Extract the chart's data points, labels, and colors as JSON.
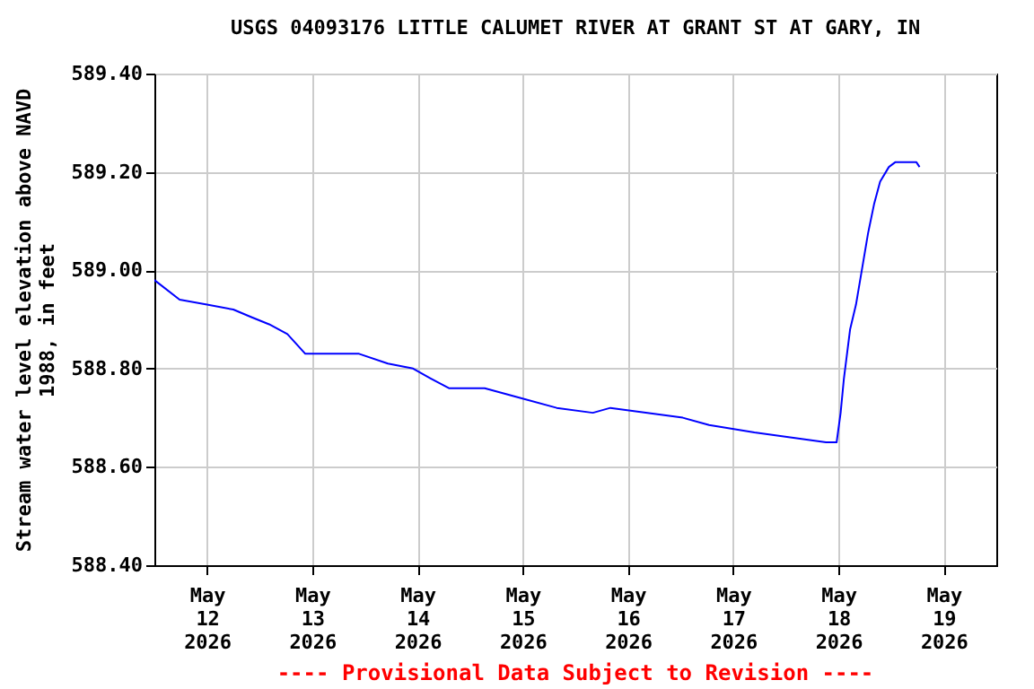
{
  "chart_data": {
    "type": "line",
    "title": "USGS 04093176 LITTLE CALUMET RIVER AT GRANT ST AT GARY, IN",
    "ylabel": "Stream water level elevation above NAVD 1988, in feet",
    "annotations": [
      "---- Provisional Data Subject to Revision ----"
    ],
    "x": [
      "2026-05-11T12:00",
      "2026-05-11T17:45",
      "2026-05-12T00:00",
      "2026-05-12T06:00",
      "2026-05-12T10:00",
      "2026-05-12T14:10",
      "2026-05-12T18:20",
      "2026-05-12T22:25",
      "2026-05-13T02:30",
      "2026-05-13T10:40",
      "2026-05-13T17:15",
      "2026-05-13T23:00",
      "2026-05-14T03:00",
      "2026-05-14T07:10",
      "2026-05-14T15:20",
      "2026-05-14T23:35",
      "2026-05-15T07:45",
      "2026-05-15T16:00",
      "2026-05-15T20:00",
      "2026-05-16T12:30",
      "2026-05-16T18:30",
      "2026-05-17T04:50",
      "2026-05-17T13:00",
      "2026-05-17T21:10",
      "2026-05-17T23:35",
      "2026-05-18T00:30",
      "2026-05-18T01:15",
      "2026-05-18T02:40",
      "2026-05-18T04:00",
      "2026-05-18T05:20",
      "2026-05-18T06:45",
      "2026-05-18T08:10",
      "2026-05-18T09:30",
      "2026-05-18T11:30",
      "2026-05-18T13:00",
      "2026-05-18T17:45",
      "2026-05-18T18:30"
    ],
    "series": [
      {
        "color": "#0000ff",
        "values": [
          588.98,
          588.94,
          588.93,
          588.92,
          588.905,
          588.89,
          588.87,
          588.83,
          588.83,
          588.83,
          588.81,
          588.8,
          588.78,
          588.76,
          588.76,
          588.74,
          588.72,
          588.71,
          588.72,
          588.7,
          588.685,
          588.67,
          588.66,
          588.65,
          588.65,
          588.71,
          588.78,
          588.88,
          588.93,
          589.0,
          589.075,
          589.136,
          589.18,
          589.21,
          589.22,
          589.22,
          589.21
        ]
      }
    ],
    "xlim": [
      "2026-05-11T12:00",
      "2026-05-19T12:00"
    ],
    "xticks": [
      {
        "value": "2026-05-12T00:00",
        "label": "May\n12\n2026"
      },
      {
        "value": "2026-05-13T00:00",
        "label": "May\n13\n2026"
      },
      {
        "value": "2026-05-14T00:00",
        "label": "May\n14\n2026"
      },
      {
        "value": "2026-05-15T00:00",
        "label": "May\n15\n2026"
      },
      {
        "value": "2026-05-16T00:00",
        "label": "May\n16\n2026"
      },
      {
        "value": "2026-05-17T00:00",
        "label": "May\n17\n2026"
      },
      {
        "value": "2026-05-18T00:00",
        "label": "May\n18\n2026"
      },
      {
        "value": "2026-05-19T00:00",
        "label": "May\n19\n2026"
      }
    ],
    "ylim": [
      588.4,
      589.4
    ],
    "yticks": [
      {
        "value": 588.4,
        "label": "588.40"
      },
      {
        "value": 588.6,
        "label": "588.60"
      },
      {
        "value": 588.8,
        "label": "588.80"
      },
      {
        "value": 589.0,
        "label": "589.00"
      },
      {
        "value": 589.2,
        "label": "589.20"
      },
      {
        "value": 589.4,
        "label": "589.40"
      }
    ],
    "grid": true
  }
}
